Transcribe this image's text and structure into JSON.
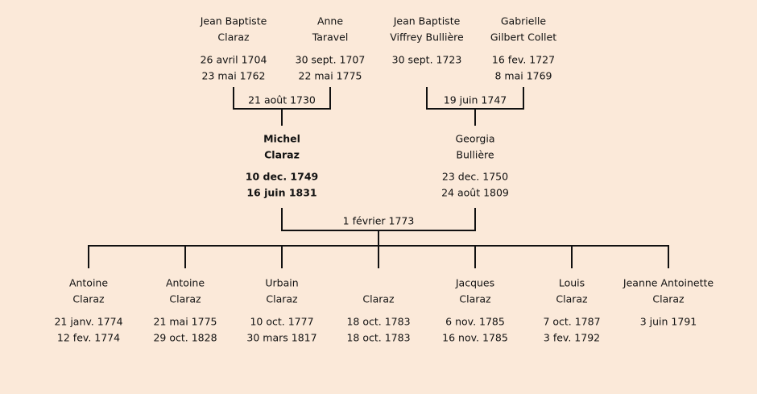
{
  "grandparents": [
    {
      "name": [
        "Jean Baptiste",
        "Claraz"
      ],
      "dates": [
        "26 avril 1704",
        "23 mai 1762"
      ]
    },
    {
      "name": [
        "Anne",
        "Taravel"
      ],
      "dates": [
        "30 sept. 1707",
        "22 mai 1775"
      ]
    },
    {
      "name": [
        "Jean Baptiste",
        "Viffrey Bullière"
      ],
      "dates": [
        "30 sept. 1723"
      ]
    },
    {
      "name": [
        "Gabrielle",
        "Gilbert Collet"
      ],
      "dates": [
        "16 fev. 1727",
        "8 mai 1769"
      ]
    }
  ],
  "parents": [
    {
      "name": [
        "Michel",
        "Claraz"
      ],
      "dates": [
        "10 dec. 1749",
        "16 juin 1831"
      ]
    },
    {
      "name": [
        "Georgia",
        "Bullière"
      ],
      "dates": [
        "23 dec. 1750",
        "24 août 1809"
      ]
    }
  ],
  "marriages": [
    "21 août 1730",
    "19 juin 1747",
    "1 février 1773"
  ],
  "children": [
    {
      "name": [
        "Antoine",
        "Claraz"
      ],
      "dates": [
        "21 janv. 1774",
        "12 fev. 1774"
      ]
    },
    {
      "name": [
        "Antoine",
        "Claraz"
      ],
      "dates": [
        "21 mai 1775",
        "29 oct. 1828"
      ]
    },
    {
      "name": [
        "Urbain",
        "Claraz"
      ],
      "dates": [
        "10 oct. 1777",
        "30 mars 1817"
      ]
    },
    {
      "name": [
        "Claraz"
      ],
      "dates": [
        "18 oct. 1783",
        "18 oct. 1783"
      ]
    },
    {
      "name": [
        "Jacques",
        "Claraz"
      ],
      "dates": [
        "6 nov. 1785",
        "16 nov. 1785"
      ]
    },
    {
      "name": [
        "Louis",
        "Claraz"
      ],
      "dates": [
        "7 oct. 1787",
        "3 fev. 1792"
      ]
    },
    {
      "name": [
        "Jeanne Antoinette",
        "Claraz"
      ],
      "dates": [
        "3 juin 1791"
      ]
    }
  ]
}
